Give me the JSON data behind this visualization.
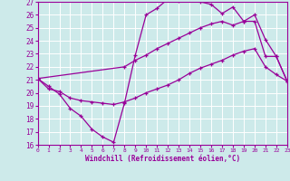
{
  "xlabel": "Windchill (Refroidissement éolien,°C)",
  "xlim": [
    0,
    23
  ],
  "ylim": [
    16,
    27
  ],
  "yticks": [
    16,
    17,
    18,
    19,
    20,
    21,
    22,
    23,
    24,
    25,
    26,
    27
  ],
  "xticks": [
    0,
    1,
    2,
    3,
    4,
    5,
    6,
    7,
    8,
    9,
    10,
    11,
    12,
    13,
    14,
    15,
    16,
    17,
    18,
    19,
    20,
    21,
    22,
    23
  ],
  "bg_color": "#cdeaea",
  "line_color": "#990099",
  "grid_color": "#ffffff",
  "line1_x": [
    0,
    1,
    2,
    3,
    4,
    5,
    6,
    7,
    8,
    9,
    10,
    11,
    12,
    13,
    14,
    15,
    16,
    17,
    18,
    19,
    20,
    21,
    22,
    23
  ],
  "line1_y": [
    21.1,
    20.5,
    19.9,
    18.8,
    18.2,
    17.2,
    16.6,
    16.2,
    19.2,
    22.9,
    26.0,
    26.5,
    27.2,
    27.1,
    27.2,
    27.0,
    26.8,
    26.1,
    26.6,
    25.5,
    26.0,
    24.1,
    22.8,
    20.9
  ],
  "line2_x": [
    0,
    8,
    9,
    10,
    11,
    12,
    13,
    14,
    15,
    16,
    17,
    18,
    19,
    20,
    21,
    22,
    23
  ],
  "line2_y": [
    21.1,
    22.0,
    22.5,
    22.9,
    23.4,
    23.8,
    24.2,
    24.6,
    25.0,
    25.3,
    25.5,
    25.2,
    25.5,
    25.5,
    22.8,
    22.8,
    20.9
  ],
  "line3_x": [
    0,
    1,
    2,
    3,
    4,
    5,
    6,
    7,
    8,
    9,
    10,
    11,
    12,
    13,
    14,
    15,
    16,
    17,
    18,
    19,
    20,
    21,
    22,
    23
  ],
  "line3_y": [
    21.1,
    20.3,
    20.1,
    19.6,
    19.4,
    19.3,
    19.2,
    19.1,
    19.3,
    19.6,
    20.0,
    20.3,
    20.6,
    21.0,
    21.5,
    21.9,
    22.2,
    22.5,
    22.9,
    23.2,
    23.4,
    22.0,
    21.4,
    20.9
  ]
}
